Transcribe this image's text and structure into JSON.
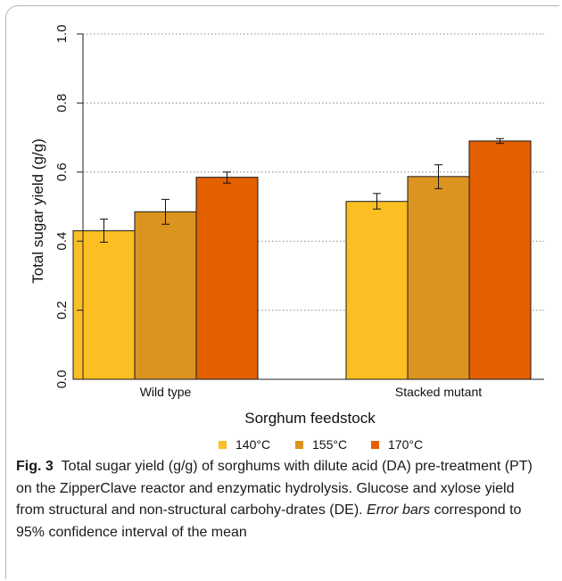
{
  "chart_data": {
    "type": "bar",
    "xlabel": "Sorghum feedstock",
    "ylabel": "Total sugar yield (g/g)",
    "ylim": [
      0,
      1.0
    ],
    "yticks": [
      "0.0",
      "0.2",
      "0.4",
      "0.6",
      "0.8",
      "1.0"
    ],
    "grid": "horizontal dotted",
    "legend_position": "bottom-center",
    "categories": [
      "Wild type",
      "Stacked mutant"
    ],
    "series": [
      {
        "name": "140°C",
        "color": "#fbbf24",
        "values": [
          0.43,
          0.515
        ],
        "errors": [
          [
            0.397,
            0.464
          ],
          [
            0.493,
            0.538
          ]
        ]
      },
      {
        "name": "155°C",
        "color": "#dc9420",
        "values": [
          0.485,
          0.587
        ],
        "errors": [
          [
            0.449,
            0.521
          ],
          [
            0.552,
            0.621
          ]
        ]
      },
      {
        "name": "170°C",
        "color": "#e35f00",
        "values": [
          0.585,
          0.69
        ],
        "errors": [
          [
            0.568,
            0.6
          ],
          [
            0.683,
            0.697
          ]
        ]
      }
    ]
  },
  "caption": {
    "label": "Fig. 3",
    "text_1": "Total sugar yield (g/g) of sorghums with dilute acid (DA) pre-treatment (PT) on the ZipperClave reactor and enzymatic hydrolysis. Glucose and xylose yield from structural and non-structural carbohy-drates (DE). ",
    "emph": "Error bars",
    "text_2": " correspond to 95% confidence interval of the mean"
  }
}
